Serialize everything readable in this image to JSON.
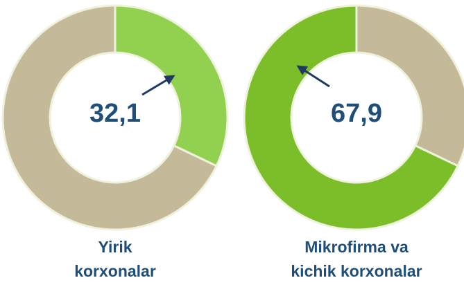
{
  "chart_data": [
    {
      "type": "donut",
      "value": 32.1,
      "value_label": "32,1",
      "color": "#92d050",
      "rest_color": "#c4b998",
      "direction": "clockwise",
      "label_lines": [
        "Yirik",
        "korxonalar"
      ]
    },
    {
      "type": "donut",
      "value": 67.9,
      "value_label": "67,9",
      "color": "#7cbd2a",
      "rest_color": "#c4b998",
      "direction": "counterclockwise",
      "label_lines": [
        "Mikrofirma va",
        "kichik korxonalar"
      ]
    }
  ]
}
